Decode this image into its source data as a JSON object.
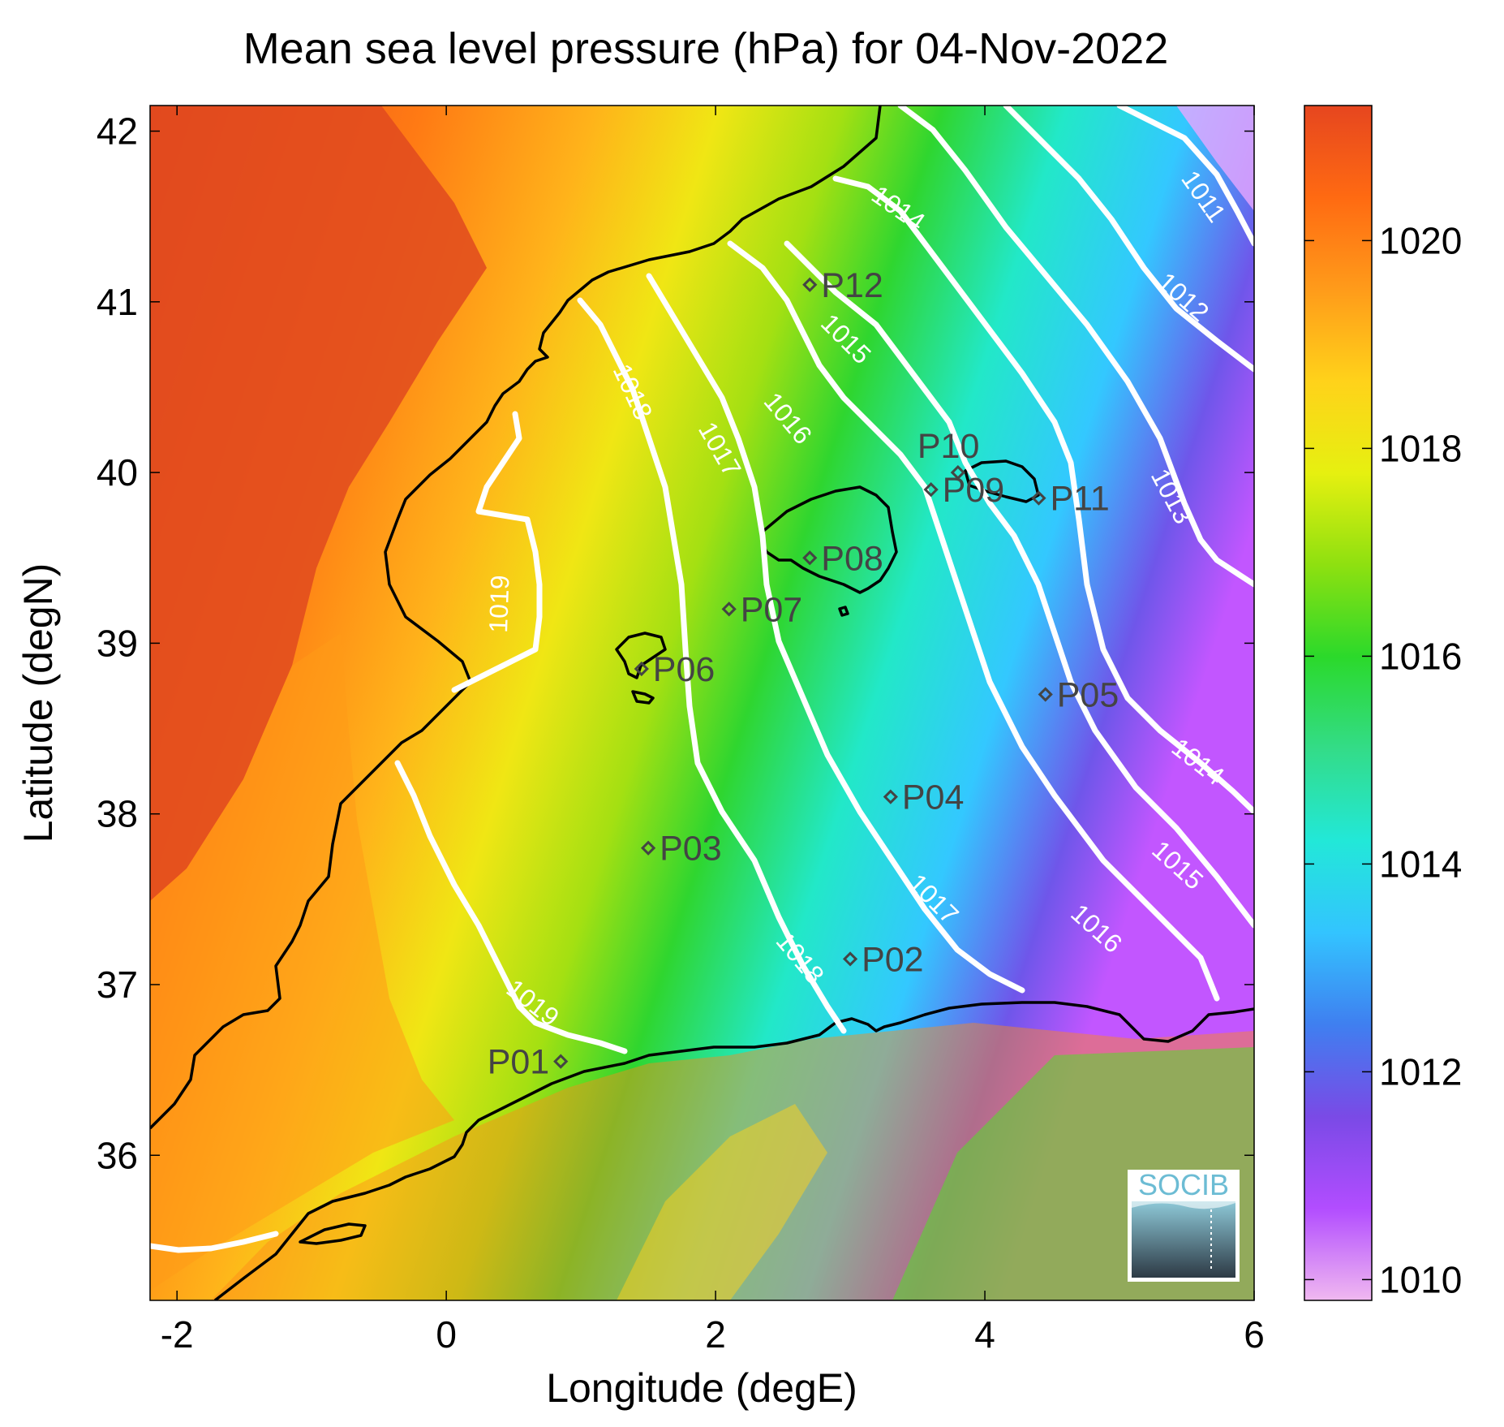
{
  "title": "Mean sea level pressure (hPa) for 04-Nov-2022",
  "x_axis": {
    "label": "Longitude (degE)",
    "ticks": [
      "-2",
      "0",
      "2",
      "4",
      "6"
    ],
    "range": [
      -2.2,
      6
    ]
  },
  "y_axis": {
    "label": "Latitude (degN)",
    "ticks": [
      "36",
      "37",
      "38",
      "39",
      "40",
      "41",
      "42"
    ],
    "range": [
      35.15,
      42.15
    ]
  },
  "colorbar": {
    "ticks": [
      "1010",
      "1012",
      "1014",
      "1016",
      "1018",
      "1020"
    ],
    "range": [
      1009.8,
      1021.3
    ],
    "colors": [
      "#f0b8f0",
      "#b24dff",
      "#7a4ae6",
      "#3f7ff0",
      "#33c4ff",
      "#22e8d8",
      "#33dc88",
      "#2bd92b",
      "#8ee010",
      "#e6f010",
      "#ffd21a",
      "#ff9b1a",
      "#ff6a12",
      "#e6461f"
    ]
  },
  "logo": {
    "text": "SOCIB"
  },
  "chart_data": {
    "type": "heatmap",
    "variable": "Mean sea level pressure (hPa)",
    "date": "04-Nov-2022",
    "contour_levels": [
      {
        "value": 1011,
        "label": "1011"
      },
      {
        "value": 1012,
        "label": "1012"
      },
      {
        "value": 1013,
        "label": "1013"
      },
      {
        "value": 1014,
        "label": "1014"
      },
      {
        "value": 1015,
        "label": "1015"
      },
      {
        "value": 1016,
        "label": "1016"
      },
      {
        "value": 1017,
        "label": "1017"
      },
      {
        "value": 1018,
        "label": "1018"
      },
      {
        "value": 1019,
        "label": "1019"
      }
    ],
    "stations": [
      {
        "name": "P01",
        "lon": 0.85,
        "lat": 36.55
      },
      {
        "name": "P02",
        "lon": 3.0,
        "lat": 37.15
      },
      {
        "name": "P03",
        "lon": 1.5,
        "lat": 37.8
      },
      {
        "name": "P04",
        "lon": 3.3,
        "lat": 38.1
      },
      {
        "name": "P05",
        "lon": 4.45,
        "lat": 38.7
      },
      {
        "name": "P06",
        "lon": 1.45,
        "lat": 38.85
      },
      {
        "name": "P07",
        "lon": 2.1,
        "lat": 39.2
      },
      {
        "name": "P08",
        "lon": 2.7,
        "lat": 39.5
      },
      {
        "name": "P09",
        "lon": 3.6,
        "lat": 39.9
      },
      {
        "name": "P10",
        "lon": 3.8,
        "lat": 40.0
      },
      {
        "name": "P11",
        "lon": 4.4,
        "lat": 39.85
      },
      {
        "name": "P12",
        "lon": 2.7,
        "lat": 41.1
      }
    ]
  }
}
